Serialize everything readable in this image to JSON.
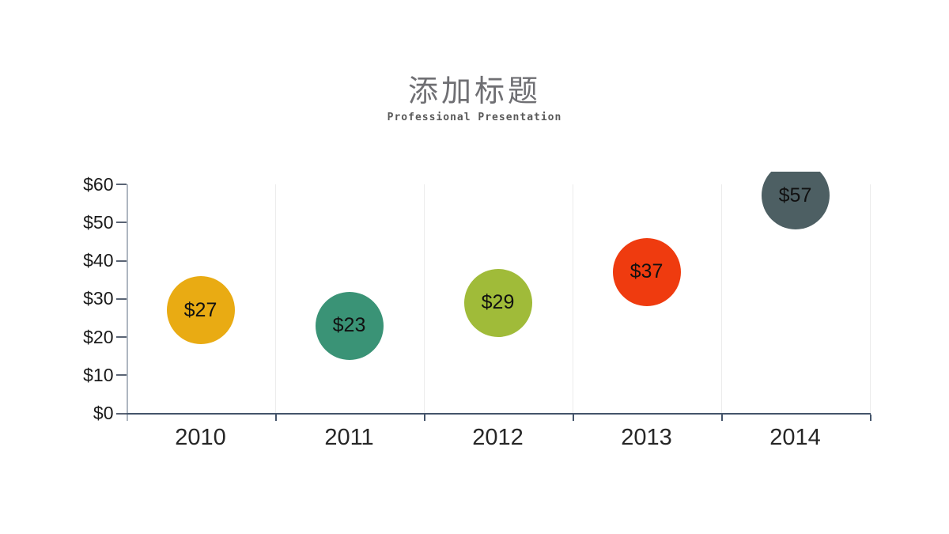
{
  "header": {
    "title": "添加标题",
    "subtitle": "Professional Presentation"
  },
  "chart_data": {
    "type": "scatter",
    "subtype": "bubble",
    "categories": [
      "2010",
      "2011",
      "2012",
      "2013",
      "2014"
    ],
    "values": [
      27,
      23,
      29,
      37,
      57
    ],
    "point_labels": [
      "$27",
      "$23",
      "$29",
      "$37",
      "$57"
    ],
    "point_colors": [
      "#e9ab13",
      "#3a9376",
      "#a0bb39",
      "#ef3b0f",
      "#4d5f63"
    ],
    "ylim": [
      0,
      60
    ],
    "y_ticks": [
      0,
      10,
      20,
      30,
      40,
      50,
      60
    ],
    "y_tick_labels": [
      "$0",
      "$10",
      "$20",
      "$30",
      "$40",
      "$50",
      "$60"
    ],
    "grid": "vertical category separators only",
    "legend": "none",
    "axis_colors": {
      "x_axis_line": "#44546a",
      "y_axis_line": "#aeb6c0",
      "tick_color": "#5a6474",
      "gridline_color": "#ececec",
      "label_color": "#262626"
    }
  }
}
